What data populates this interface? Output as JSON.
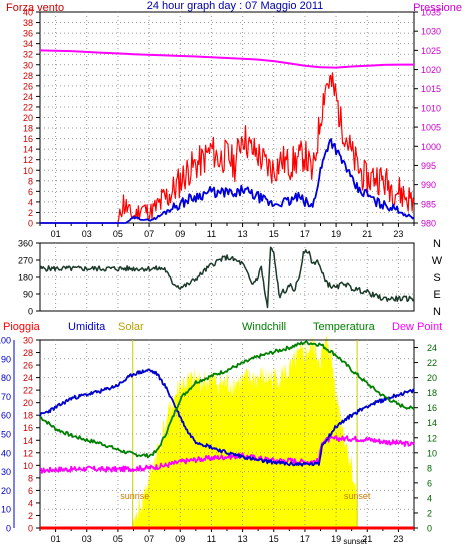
{
  "chart_data": [
    {
      "type": "line",
      "title": "24 hour graph day : 07 Maggio 2011",
      "ylabel_left": "Forza vento",
      "ylabel_right": "Pressione",
      "left_axis": {
        "ylim": [
          0,
          40
        ],
        "ticks": [
          "0",
          "2",
          "4",
          "6",
          "8",
          "10",
          "12",
          "14",
          "16",
          "18",
          "20",
          "22",
          "24",
          "26",
          "28",
          "30",
          "32",
          "34",
          "36",
          "38",
          "40"
        ]
      },
      "right_axis": {
        "ylim": [
          980,
          1035
        ],
        "ticks": [
          "980",
          "985",
          "990",
          "995",
          "1000",
          "1005",
          "1010",
          "1015",
          "1020",
          "1025",
          "1030",
          "1035"
        ]
      },
      "x_ticks": [
        "01",
        "03",
        "05",
        "07",
        "09",
        "11",
        "13",
        "15",
        "17",
        "19",
        "21",
        "23"
      ],
      "grid": true,
      "colors": {
        "gust": "#ff0000",
        "wind": "#0000dd",
        "pressure": "#ff00ff",
        "title": "#0000aa"
      },
      "pressure": {
        "x": [
          0,
          2,
          4,
          6,
          8,
          10,
          12,
          14,
          15,
          16,
          17,
          18,
          19,
          20,
          21,
          22,
          23,
          24
        ],
        "y": [
          1025.0,
          1024.8,
          1024.4,
          1024.0,
          1023.7,
          1023.4,
          1023.0,
          1022.6,
          1022.2,
          1021.6,
          1021.0,
          1020.6,
          1020.5,
          1020.8,
          1021.0,
          1021.2,
          1021.3,
          1021.3
        ]
      },
      "wind": {
        "x": [
          0,
          5.5,
          6.0,
          7.0,
          7.5,
          8.0,
          8.5,
          9.0,
          9.5,
          10.0,
          10.5,
          11.0,
          11.5,
          12.0,
          12.5,
          13.0,
          13.5,
          14.0,
          14.5,
          15.0,
          15.5,
          16.0,
          16.5,
          17.0,
          17.5,
          18.0,
          18.3,
          18.6,
          19.0,
          19.3,
          19.6,
          20.0,
          20.5,
          21.0,
          21.5,
          22.0,
          22.5,
          23.0,
          23.5,
          24.0
        ],
        "y": [
          0,
          0,
          1,
          0.5,
          1,
          2,
          3,
          3.5,
          4.5,
          5,
          5.5,
          6,
          5.5,
          6,
          5,
          6.5,
          5.5,
          5,
          4,
          3.5,
          4,
          4,
          5,
          4,
          3,
          10,
          13,
          16,
          14,
          12,
          11,
          8,
          6,
          5.5,
          4,
          3.5,
          3,
          2.5,
          1.5,
          1
        ]
      },
      "gust": {
        "x": [
          0,
          5.0,
          5.3,
          6.0,
          6.5,
          7.0,
          7.5,
          8.0,
          8.5,
          9.0,
          9.5,
          10.0,
          10.5,
          11.0,
          11.5,
          12.0,
          12.5,
          13.0,
          13.5,
          14.0,
          14.5,
          15.0,
          15.5,
          16.0,
          16.5,
          17.0,
          17.5,
          18.0,
          18.3,
          18.6,
          19.0,
          19.3,
          19.6,
          20.0,
          20.5,
          21.0,
          21.5,
          22.0,
          22.5,
          23.0,
          23.5,
          24.0
        ],
        "y": [
          0,
          0,
          4,
          1,
          3,
          2,
          3,
          4.5,
          6,
          8,
          10,
          11,
          12,
          14,
          12,
          13,
          11,
          17,
          14,
          13,
          11,
          10,
          12,
          11,
          12,
          13,
          9,
          20,
          26,
          27,
          24,
          19,
          17,
          13,
          10,
          8,
          9,
          8,
          7,
          6,
          5,
          4
        ]
      }
    },
    {
      "type": "line",
      "ylabels": [
        "360",
        "270",
        "180",
        "90",
        "0"
      ],
      "compass": [
        "N",
        "W",
        "S",
        "E",
        "N"
      ],
      "ylim": [
        0,
        360
      ],
      "x_ticks": [
        "01",
        "03",
        "05",
        "07",
        "09",
        "11",
        "13",
        "15",
        "17",
        "19",
        "21",
        "23"
      ],
      "colors": {
        "line": "#1b3a2a"
      },
      "direction": {
        "x": [
          0,
          2,
          4,
          6,
          8,
          8.5,
          9.0,
          9.5,
          10.0,
          10.5,
          11.0,
          11.5,
          12.0,
          12.5,
          13.0,
          13.3,
          13.6,
          14.0,
          14.2,
          14.4,
          14.6,
          14.8,
          15.0,
          15.2,
          15.4,
          15.6,
          15.8,
          16.0,
          16.3,
          16.6,
          16.9,
          17.2,
          17.5,
          17.8,
          18.1,
          18.5,
          19.0,
          19.5,
          20.0,
          20.5,
          21.0,
          21.5,
          22.0,
          22.5,
          23.0,
          23.5,
          24.0
        ],
        "y": [
          225,
          225,
          225,
          225,
          225,
          150,
          125,
          140,
          170,
          210,
          245,
          270,
          285,
          270,
          250,
          200,
          140,
          180,
          240,
          110,
          20,
          340,
          300,
          180,
          60,
          120,
          90,
          140,
          110,
          170,
          300,
          320,
          250,
          270,
          200,
          140,
          120,
          150,
          120,
          110,
          100,
          80,
          65,
          65,
          65,
          65,
          65
        ]
      }
    },
    {
      "type": "line",
      "legend": [
        "Pioggia",
        "Umidita",
        "Solar",
        "Windchill",
        "Temperatura",
        "Dew Point"
      ],
      "colors": {
        "rain": "#ff0000",
        "humidity": "#0000cc",
        "solar": "#ffff00",
        "windchill": "#008000",
        "temperature": "#008000",
        "dew_point": "#ff00ff",
        "sun": "#cc7a00"
      },
      "humidity_axis": {
        "ylim": [
          0,
          100
        ],
        "ticks": [
          "0",
          "10",
          "20",
          "30",
          "40",
          "50",
          "60",
          "70",
          "80",
          "90",
          "100"
        ]
      },
      "rain_axis": {
        "ylim": [
          0,
          30
        ],
        "ticks": [
          "0",
          "2",
          "4",
          "6",
          "8",
          "10",
          "12",
          "14",
          "16",
          "18",
          "20",
          "22",
          "24",
          "26",
          "28",
          "30"
        ]
      },
      "temp_axis": {
        "ylim": [
          0,
          25
        ],
        "ticks": [
          "0",
          "2",
          "4",
          "6",
          "8",
          "10",
          "12",
          "14",
          "16",
          "18",
          "20",
          "22",
          "24"
        ]
      },
      "x_ticks": [
        "01",
        "03",
        "05",
        "07",
        "09",
        "11",
        "13",
        "15",
        "17",
        "19",
        "21",
        "23"
      ],
      "sunrise": {
        "label": "sunrise",
        "x": 5.95
      },
      "sunset": {
        "label": "sunset",
        "x": 20.35
      },
      "sunset_tick": "sunset",
      "rain": {
        "x": [
          0,
          24
        ],
        "y": [
          0,
          0
        ]
      },
      "humidity": {
        "x": [
          0,
          1,
          2,
          3,
          4,
          5,
          6,
          7,
          7.5,
          8,
          8.5,
          9,
          9.5,
          10,
          11,
          12,
          13,
          14,
          15,
          16,
          17,
          17.9,
          18.1,
          19,
          20,
          21,
          22,
          23,
          24
        ],
        "y": [
          60,
          64,
          69,
          71,
          73,
          76,
          82,
          84,
          82,
          76,
          68,
          59,
          51,
          46,
          43,
          40,
          38,
          36,
          35,
          34,
          34,
          34,
          44,
          54,
          60,
          65,
          68,
          71,
          73
        ]
      },
      "temperature": {
        "x": [
          0,
          1,
          2,
          3,
          4,
          5,
          6,
          7,
          7.5,
          8,
          8.5,
          9,
          10,
          11,
          12,
          13,
          14,
          15,
          16,
          17,
          18,
          19,
          20,
          21,
          22,
          23,
          24
        ],
        "y": [
          14.8,
          13.2,
          12.3,
          11.7,
          11.2,
          10.4,
          9.8,
          9.6,
          10.2,
          12.2,
          14.6,
          17.2,
          19.4,
          20.2,
          21.0,
          21.9,
          22.8,
          23.4,
          24.0,
          24.7,
          24.4,
          23.0,
          21.0,
          19.2,
          17.6,
          16.4,
          15.8
        ]
      },
      "dew_point": {
        "x": [
          0,
          1,
          2,
          3,
          4,
          5,
          6,
          7,
          8,
          9,
          10,
          11,
          12,
          13,
          14,
          15,
          16,
          17,
          17.9,
          18.1,
          19,
          20,
          21,
          22,
          23,
          24
        ],
        "y": [
          7.6,
          7.8,
          7.8,
          7.9,
          7.8,
          7.8,
          7.9,
          8.0,
          8.3,
          8.8,
          9.1,
          9.3,
          9.5,
          9.6,
          9.3,
          9.0,
          9.0,
          8.8,
          8.9,
          11.6,
          11.9,
          11.9,
          11.8,
          11.5,
          11.3,
          11.1
        ]
      },
      "solar": {
        "x": [
          5.9,
          6.0,
          6.5,
          7.0,
          7.5,
          8.0,
          8.5,
          9.0,
          10.0,
          11.0,
          12.0,
          13.0,
          14.0,
          15.0,
          16.0,
          16.5,
          17.0,
          17.5,
          18.0,
          18.5,
          19.0,
          19.5,
          20.0,
          20.3,
          20.4
        ],
        "y": [
          0,
          1,
          4,
          8,
          12,
          16,
          20,
          23,
          23.5,
          23.5,
          23,
          23.5,
          24,
          24,
          25,
          27,
          28,
          29,
          27,
          30,
          22,
          15,
          10,
          5,
          0
        ]
      }
    }
  ]
}
